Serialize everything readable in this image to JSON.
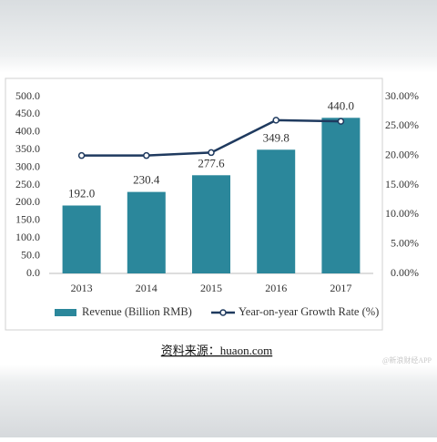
{
  "chart_data": {
    "type": "bar",
    "categories": [
      "2013",
      "2014",
      "2015",
      "2016",
      "2017"
    ],
    "series": [
      {
        "name": "Revenue (Billion RMB)",
        "type": "bar",
        "color": "#2b879b",
        "values": [
          192,
          230.4,
          277.6,
          349.8,
          440
        ],
        "value_labels": [
          "192.0",
          "230.4",
          "277.6",
          "349.8",
          "440.0"
        ]
      },
      {
        "name": "Year-on-year Growth Rate (%)",
        "type": "line",
        "axis": "y2",
        "color": "#1f3a5f",
        "values": [
          20,
          20,
          20.5,
          26,
          25.8
        ]
      }
    ],
    "ylim": [
      0,
      500
    ],
    "yticks": [
      {
        "value": 0,
        "label": "0.0"
      },
      {
        "value": 50,
        "label": "50.0"
      },
      {
        "value": 100,
        "label": "100.0"
      },
      {
        "value": 150,
        "label": "150.0"
      },
      {
        "value": 200,
        "label": "200.0"
      },
      {
        "value": 250,
        "label": "250.0"
      },
      {
        "value": 300,
        "label": "300.0"
      },
      {
        "value": 350,
        "label": "350.0"
      },
      {
        "value": 400,
        "label": "400.0"
      },
      {
        "value": 450,
        "label": "450.0"
      },
      {
        "value": 500,
        "label": "500.0"
      }
    ],
    "y2lim": [
      0,
      30
    ],
    "y2ticks": [
      {
        "value": 0,
        "label": "0.00%"
      },
      {
        "value": 5,
        "label": "5.00%"
      },
      {
        "value": 10,
        "label": "10.00%"
      },
      {
        "value": 15,
        "label": "15.00%"
      },
      {
        "value": 20,
        "label": "20.00%"
      },
      {
        "value": 25,
        "label": "25.00%"
      },
      {
        "value": 30,
        "label": "30.00%"
      }
    ],
    "grid": false
  },
  "source": "资料来源：huaon.com",
  "watermark": "@新浪财经APP"
}
